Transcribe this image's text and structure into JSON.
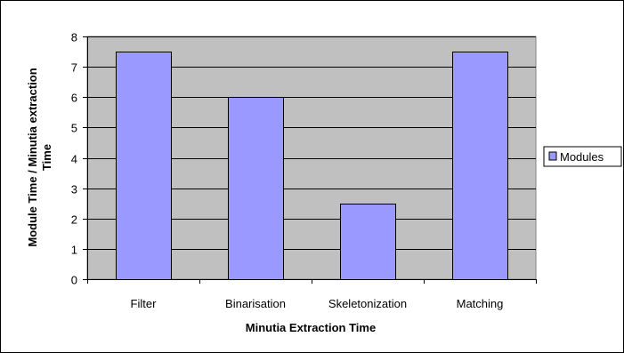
{
  "chart_data": {
    "type": "bar",
    "title": "",
    "categories": [
      "Filter",
      "Binarisation",
      "Skeletonization",
      "Matching"
    ],
    "series": [
      {
        "name": "Modules",
        "values": [
          7.5,
          6,
          2.5,
          7.5
        ]
      }
    ],
    "xlabel": "Minutia Extraction Time",
    "ylabel_lines": [
      "Module Time / Minutia extraction",
      "Time"
    ],
    "ylim": [
      0,
      8
    ],
    "yticks": [
      0,
      1,
      2,
      3,
      4,
      5,
      6,
      7,
      8
    ],
    "grid": true,
    "legend": "right",
    "colors": {
      "bar": "#9999ff",
      "plot_background": "#c0c0c0",
      "grid": "#000000"
    }
  }
}
